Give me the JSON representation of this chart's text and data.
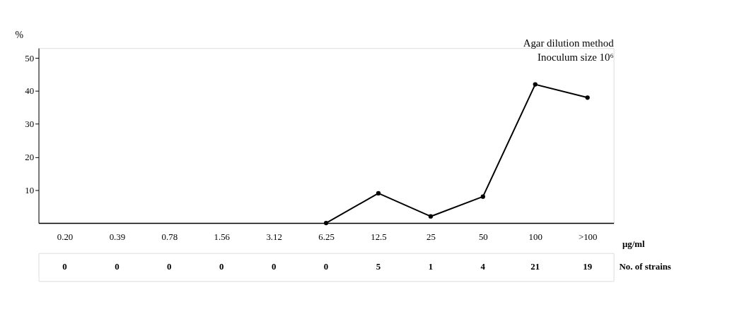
{
  "chart_data": {
    "type": "line",
    "ylabel": "%",
    "xlabel": "μg/ml",
    "categories": [
      "0.20",
      "0.39",
      "0.78",
      "1.56",
      "3.12",
      "6.25",
      "12.5",
      "25",
      "50",
      "100",
      ">100"
    ],
    "series": [
      {
        "color": "#000000",
        "values": [
          null,
          null,
          null,
          null,
          null,
          0,
          9,
          2,
          8,
          42,
          38
        ]
      }
    ],
    "ylim": [
      0,
      53
    ],
    "yticks": [
      10,
      20,
      30,
      40,
      50
    ],
    "grid": false,
    "marker": "circle",
    "line_style": "solid",
    "annotations": [
      "Agar dilution method",
      "Inoculum size 10⁶",
      "No. of strains",
      "0",
      "0",
      "0",
      "0",
      "0",
      "0",
      "5",
      "1",
      "4",
      "21",
      "19"
    ]
  }
}
